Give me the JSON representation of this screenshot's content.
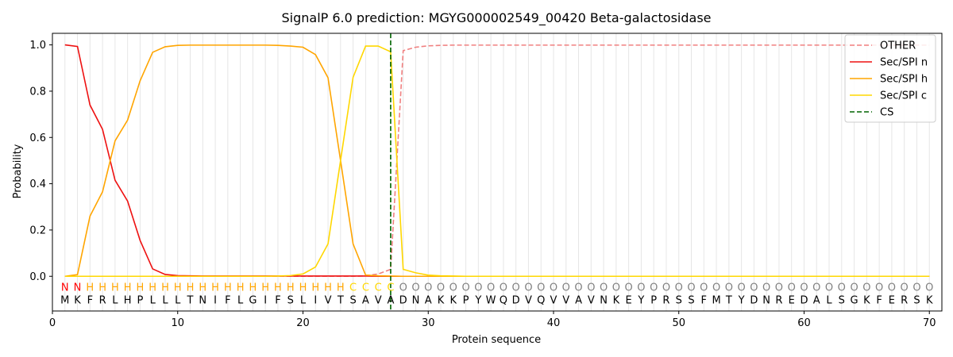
{
  "chart_data": {
    "type": "line",
    "title": "SignalP 6.0 prediction: MGYG000002549_00420 Beta-galactosidase",
    "xlabel": "Protein sequence",
    "ylabel": "Probability",
    "xlim": [
      0,
      71
    ],
    "ylim": [
      -0.15,
      1.05
    ],
    "xticks": [
      0,
      10,
      20,
      30,
      40,
      50,
      60,
      70
    ],
    "yticks": [
      0.0,
      0.2,
      0.4,
      0.6,
      0.8,
      1.0
    ],
    "ytick_labels": [
      "0.0",
      "0.2",
      "0.4",
      "0.6",
      "0.8",
      "1.0"
    ],
    "legend_position": "top-right",
    "sequence": [
      "M",
      "K",
      "F",
      "R",
      "L",
      "H",
      "P",
      "L",
      "L",
      "L",
      "T",
      "N",
      "I",
      "F",
      "L",
      "G",
      "I",
      "F",
      "S",
      "L",
      "I",
      "V",
      "T",
      "S",
      "A",
      "V",
      "A",
      "D",
      "N",
      "A",
      "K",
      "K",
      "P",
      "Y",
      "W",
      "Q",
      "D",
      "V",
      "Q",
      "V",
      "V",
      "A",
      "V",
      "N",
      "K",
      "E",
      "Y",
      "P",
      "R",
      "S",
      "S",
      "F",
      "M",
      "T",
      "Y",
      "D",
      "N",
      "R",
      "E",
      "D",
      "A",
      "L",
      "S",
      "G",
      "K",
      "F",
      "E",
      "R",
      "S",
      "K"
    ],
    "labels": [
      "N",
      "N",
      "H",
      "H",
      "H",
      "H",
      "H",
      "H",
      "H",
      "H",
      "H",
      "H",
      "H",
      "H",
      "H",
      "H",
      "H",
      "H",
      "H",
      "H",
      "H",
      "H",
      "H",
      "C",
      "C",
      "C",
      "C",
      "O",
      "O",
      "O",
      "O",
      "O",
      "O",
      "O",
      "O",
      "O",
      "O",
      "O",
      "O",
      "O",
      "O",
      "O",
      "O",
      "O",
      "O",
      "O",
      "O",
      "O",
      "O",
      "O",
      "O",
      "O",
      "O",
      "O",
      "O",
      "O",
      "O",
      "O",
      "O",
      "O",
      "O",
      "O",
      "O",
      "O",
      "O",
      "O",
      "O",
      "O",
      "O",
      "O"
    ],
    "label_colors": {
      "N": "#ff0000",
      "H": "#ffa500",
      "C": "#ffd700",
      "O": "#808080"
    },
    "series": [
      {
        "name": "OTHER",
        "color": "#f08080",
        "dash": "dashed",
        "values": [
          0,
          0,
          0,
          0,
          0,
          0,
          0,
          0,
          0,
          0,
          0,
          0,
          0,
          0,
          0,
          0,
          0,
          0,
          0,
          0,
          0,
          0,
          0,
          0,
          0.002,
          0.01,
          0.03,
          0.975,
          0.99,
          0.996,
          0.998,
          0.999,
          0.999,
          0.999,
          0.999,
          0.999,
          0.999,
          0.999,
          0.999,
          0.999,
          0.999,
          0.999,
          0.999,
          0.999,
          0.999,
          0.999,
          0.999,
          0.999,
          0.999,
          0.999,
          0.999,
          0.999,
          0.999,
          0.999,
          0.999,
          0.999,
          0.999,
          0.999,
          0.999,
          0.999,
          0.999,
          0.999,
          0.999,
          0.999,
          0.999,
          0.999,
          0.999,
          0.999,
          0.999,
          0.999
        ]
      },
      {
        "name": "Sec/SPI n",
        "color": "#ee1111",
        "dash": "solid",
        "values": [
          1.0,
          0.993,
          0.74,
          0.635,
          0.415,
          0.325,
          0.155,
          0.032,
          0.008,
          0.003,
          0.002,
          0.001,
          0.001,
          0.001,
          0.001,
          0.001,
          0.001,
          0.001,
          0.001,
          0.001,
          0.001,
          0.001,
          0.001,
          0.001,
          0.001,
          0,
          0,
          0,
          0,
          0,
          0,
          0,
          0,
          0,
          0,
          0,
          0,
          0,
          0,
          0,
          0,
          0,
          0,
          0,
          0,
          0,
          0,
          0,
          0,
          0,
          0,
          0,
          0,
          0,
          0,
          0,
          0,
          0,
          0,
          0,
          0,
          0,
          0,
          0,
          0,
          0,
          0,
          0,
          0,
          0
        ]
      },
      {
        "name": "Sec/SPI h",
        "color": "#ffa500",
        "dash": "solid",
        "values": [
          0.0,
          0.007,
          0.26,
          0.365,
          0.585,
          0.675,
          0.845,
          0.968,
          0.992,
          0.998,
          0.999,
          0.999,
          0.999,
          0.999,
          0.999,
          0.999,
          0.999,
          0.998,
          0.995,
          0.99,
          0.958,
          0.858,
          0.5,
          0.14,
          0.005,
          0.002,
          0.001,
          0,
          0,
          0,
          0,
          0,
          0,
          0,
          0,
          0,
          0,
          0,
          0,
          0,
          0,
          0,
          0,
          0,
          0,
          0,
          0,
          0,
          0,
          0,
          0,
          0,
          0,
          0,
          0,
          0,
          0,
          0,
          0,
          0,
          0,
          0,
          0,
          0,
          0,
          0,
          0,
          0,
          0,
          0
        ]
      },
      {
        "name": "Sec/SPI c",
        "color": "#ffd700",
        "dash": "solid",
        "values": [
          0,
          0,
          0,
          0,
          0,
          0,
          0,
          0,
          0,
          0,
          0,
          0,
          0,
          0,
          0,
          0,
          0,
          0.001,
          0.003,
          0.01,
          0.04,
          0.14,
          0.5,
          0.86,
          0.995,
          0.995,
          0.97,
          0.03,
          0.015,
          0.005,
          0.002,
          0.001,
          0,
          0,
          0,
          0,
          0,
          0,
          0,
          0,
          0,
          0,
          0,
          0,
          0,
          0,
          0,
          0,
          0,
          0,
          0,
          0,
          0,
          0,
          0,
          0,
          0,
          0,
          0,
          0,
          0,
          0,
          0,
          0,
          0,
          0,
          0,
          0,
          0,
          0
        ]
      }
    ],
    "cs": {
      "name": "CS",
      "x": 27,
      "color": "#006400",
      "dash": "dashed"
    }
  }
}
